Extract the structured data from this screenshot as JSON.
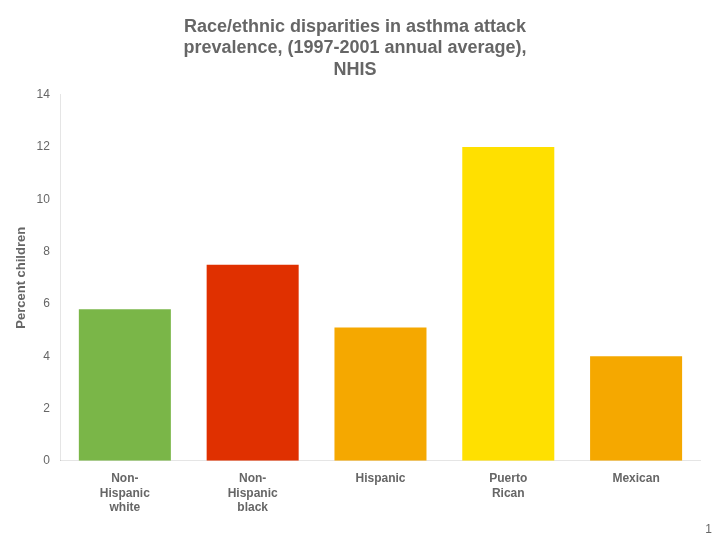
{
  "chart_data": {
    "type": "bar",
    "title": "Race/ethnic disparities in asthma attack\nprevalence, (1997-2001 annual average),\nNHIS",
    "ylabel": "Percent children",
    "categories": [
      "Non-\nHispanic\nwhite",
      "Non-\nHispanic\nblack",
      "Hispanic",
      "Puerto\nRican",
      "Mexican"
    ],
    "values": [
      5.8,
      7.5,
      5.1,
      12.0,
      4.0
    ],
    "colors": [
      "#7ab648",
      "#e03000",
      "#f5a800",
      "#ffe000",
      "#f5a800"
    ],
    "ylim": [
      0,
      14
    ],
    "yticks": [
      0,
      2,
      4,
      6,
      8,
      10,
      12,
      14
    ],
    "grid": false,
    "annotations": [
      "1"
    ]
  }
}
